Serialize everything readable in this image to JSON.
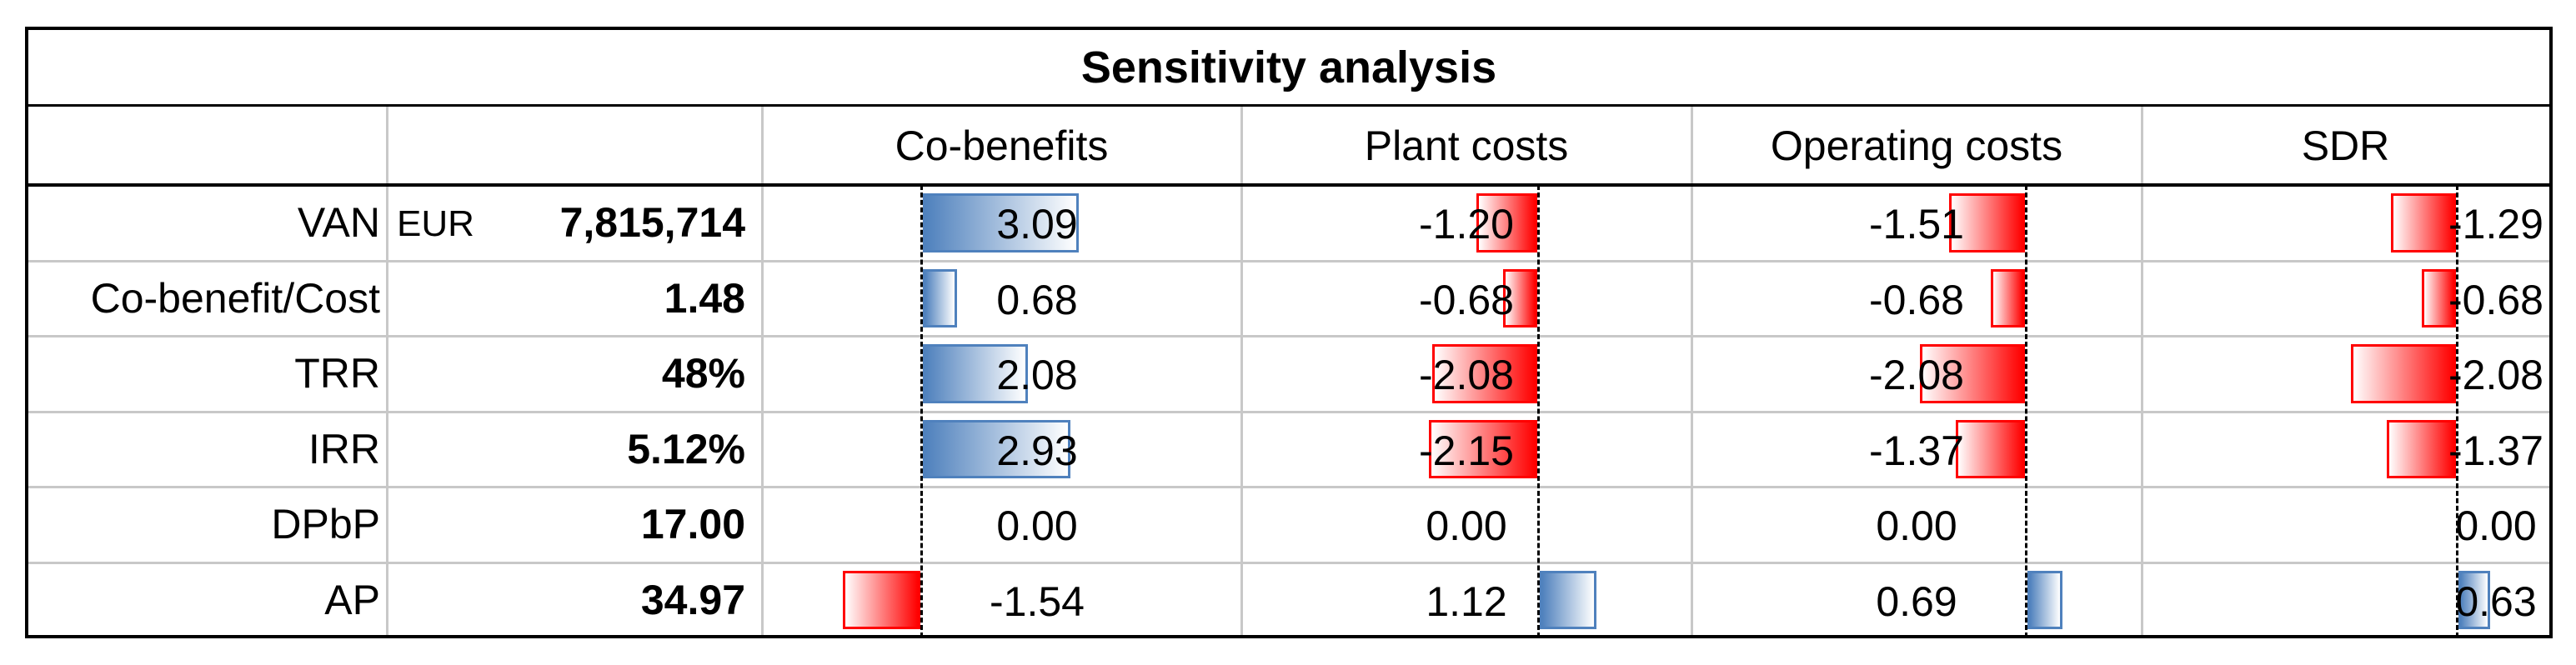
{
  "title": "Sensitivity analysis",
  "columns": [
    "Co-benefits",
    "Plant costs",
    "Operating costs",
    "SDR"
  ],
  "colors": {
    "positive": "#4f81bd",
    "negative": "#ff0000"
  },
  "rows": [
    {
      "label": "VAN",
      "currency": "EUR",
      "value": "7,815,714",
      "cells": [
        {
          "text": "3.09",
          "v": 3.09
        },
        {
          "text": "-1.20",
          "v": -1.2
        },
        {
          "text": "-1.51",
          "v": -1.51
        },
        {
          "text": "-1.29",
          "v": -1.29
        }
      ]
    },
    {
      "label": "Co-benefit/Cost",
      "currency": "",
      "value": "1.48",
      "cells": [
        {
          "text": "0.68",
          "v": 0.68
        },
        {
          "text": "-0.68",
          "v": -0.68
        },
        {
          "text": "-0.68",
          "v": -0.68
        },
        {
          "text": "-0.68",
          "v": -0.68
        }
      ]
    },
    {
      "label": "TRR",
      "currency": "",
      "value": "48%",
      "cells": [
        {
          "text": "2.08",
          "v": 2.08
        },
        {
          "text": "-2.08",
          "v": -2.08
        },
        {
          "text": "-2.08",
          "v": -2.08
        },
        {
          "text": "-2.08",
          "v": -2.08
        }
      ]
    },
    {
      "label": "IRR",
      "currency": "",
      "value": "5.12%",
      "cells": [
        {
          "text": "2.93",
          "v": 2.93
        },
        {
          "text": "-2.15",
          "v": -2.15
        },
        {
          "text": "-1.37",
          "v": -1.37
        },
        {
          "text": "-1.37",
          "v": -1.37
        }
      ]
    },
    {
      "label": "DPbP",
      "currency": "",
      "value": "17.00",
      "cells": [
        {
          "text": "0.00",
          "v": 0
        },
        {
          "text": "0.00",
          "v": 0
        },
        {
          "text": "0.00",
          "v": 0
        },
        {
          "text": "0.00",
          "v": 0
        }
      ]
    },
    {
      "label": "AP",
      "currency": "",
      "value": "34.97",
      "cells": [
        {
          "text": "-1.54",
          "v": -1.54
        },
        {
          "text": "1.12",
          "v": 1.12
        },
        {
          "text": "0.69",
          "v": 0.69
        },
        {
          "text": "0.63",
          "v": 0.63
        }
      ]
    }
  ]
}
